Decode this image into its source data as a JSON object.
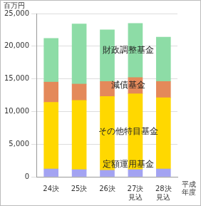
{
  "chart_data": {
    "type": "bar",
    "stacked": true,
    "grid": true,
    "y_label": "百万円",
    "x_label": "平成\n年度",
    "categories": [
      "24決",
      "25決",
      "26決",
      "27決\n見込",
      "28決\n見込"
    ],
    "ylim": [
      0,
      25000
    ],
    "yticks": [
      0,
      {
        "value": 5000,
        "label": "5,000"
      },
      {
        "value": 10000,
        "label": "10,000"
      },
      {
        "value": 15000,
        "label": "15,000"
      },
      {
        "value": 20000,
        "label": "20,000"
      },
      {
        "value": 25000,
        "label": "25,000"
      }
    ],
    "series": [
      {
        "name": "定額運用基金",
        "color": "#a3a3f2",
        "values": [
          1200,
          1100,
          1000,
          1100,
          1200
        ]
      },
      {
        "name": "その他特目基金",
        "color": "#ffd800",
        "values": [
          10200,
          10600,
          11300,
          11600,
          10900
        ]
      },
      {
        "name": "減債基金",
        "color": "#e4895a",
        "values": [
          3100,
          2500,
          2300,
          2500,
          2500
        ]
      },
      {
        "name": "財政調整基金",
        "color": "#8ddca6",
        "values": [
          6700,
          9200,
          7900,
          8300,
          6800
        ]
      }
    ]
  }
}
